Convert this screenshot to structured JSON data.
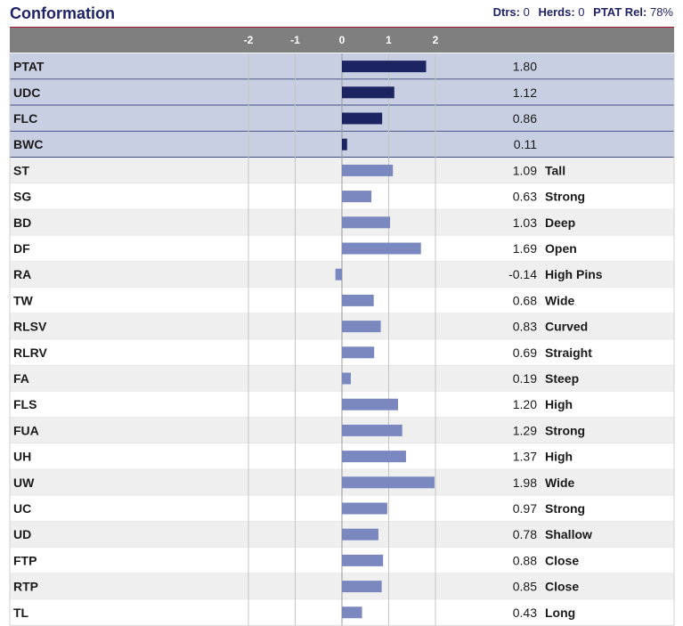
{
  "header": {
    "title": "Conformation",
    "dtrs_label": "Dtrs:",
    "dtrs_value": "0",
    "herds_label": "Herds:",
    "herds_value": "0",
    "rel_label": "PTAT Rel:",
    "rel_value": "78%"
  },
  "colors": {
    "accent_line": "#a8182c",
    "axis_bar": "#7f7f7f",
    "composite_row_bg": "#c8cfe3",
    "composite_bar": "#1c2461",
    "trait_bar": "#7b88c0",
    "alt_row_bg": "#efefef"
  },
  "chart_data": {
    "type": "bar",
    "orientation": "horizontal",
    "xlim": [
      -2,
      2
    ],
    "x_ticks": [
      "-2",
      "-1",
      "0",
      "1",
      "2"
    ],
    "rows": [
      {
        "label": "PTAT",
        "value": 1.8,
        "value_text": "1.80",
        "descriptor": "",
        "composite": true
      },
      {
        "label": "UDC",
        "value": 1.12,
        "value_text": "1.12",
        "descriptor": "",
        "composite": true
      },
      {
        "label": "FLC",
        "value": 0.86,
        "value_text": "0.86",
        "descriptor": "",
        "composite": true
      },
      {
        "label": "BWC",
        "value": 0.11,
        "value_text": "0.11",
        "descriptor": "",
        "composite": true
      },
      {
        "label": "ST",
        "value": 1.09,
        "value_text": "1.09",
        "descriptor": "Tall",
        "composite": false
      },
      {
        "label": "SG",
        "value": 0.63,
        "value_text": "0.63",
        "descriptor": "Strong",
        "composite": false
      },
      {
        "label": "BD",
        "value": 1.03,
        "value_text": "1.03",
        "descriptor": "Deep",
        "composite": false
      },
      {
        "label": "DF",
        "value": 1.69,
        "value_text": "1.69",
        "descriptor": "Open",
        "composite": false
      },
      {
        "label": "RA",
        "value": -0.14,
        "value_text": "-0.14",
        "descriptor": "High Pins",
        "composite": false
      },
      {
        "label": "TW",
        "value": 0.68,
        "value_text": "0.68",
        "descriptor": "Wide",
        "composite": false
      },
      {
        "label": "RLSV",
        "value": 0.83,
        "value_text": "0.83",
        "descriptor": "Curved",
        "composite": false
      },
      {
        "label": "RLRV",
        "value": 0.69,
        "value_text": "0.69",
        "descriptor": "Straight",
        "composite": false
      },
      {
        "label": "FA",
        "value": 0.19,
        "value_text": "0.19",
        "descriptor": "Steep",
        "composite": false
      },
      {
        "label": "FLS",
        "value": 1.2,
        "value_text": "1.20",
        "descriptor": "High",
        "composite": false
      },
      {
        "label": "FUA",
        "value": 1.29,
        "value_text": "1.29",
        "descriptor": "Strong",
        "composite": false
      },
      {
        "label": "UH",
        "value": 1.37,
        "value_text": "1.37",
        "descriptor": "High",
        "composite": false
      },
      {
        "label": "UW",
        "value": 1.98,
        "value_text": "1.98",
        "descriptor": "Wide",
        "composite": false
      },
      {
        "label": "UC",
        "value": 0.97,
        "value_text": "0.97",
        "descriptor": "Strong",
        "composite": false
      },
      {
        "label": "UD",
        "value": 0.78,
        "value_text": "0.78",
        "descriptor": "Shallow",
        "composite": false
      },
      {
        "label": "FTP",
        "value": 0.88,
        "value_text": "0.88",
        "descriptor": "Close",
        "composite": false
      },
      {
        "label": "RTP",
        "value": 0.85,
        "value_text": "0.85",
        "descriptor": "Close",
        "composite": false
      },
      {
        "label": "TL",
        "value": 0.43,
        "value_text": "0.43",
        "descriptor": "Long",
        "composite": false
      }
    ]
  }
}
